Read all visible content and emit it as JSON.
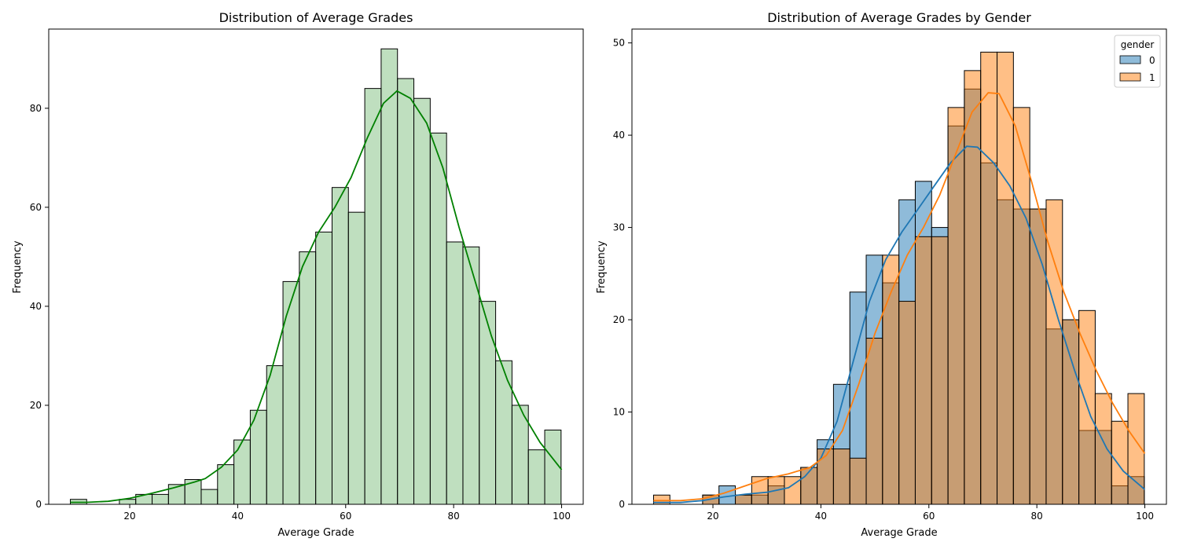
{
  "chart_data": [
    {
      "type": "bar",
      "title": "Distribution of Average Grades",
      "xlabel": "Average Grade",
      "ylabel": "Frequency",
      "xlim": [
        5,
        104
      ],
      "ylim": [
        0,
        96
      ],
      "xticks": [
        20,
        40,
        60,
        80,
        100
      ],
      "yticks": [
        0,
        20,
        40,
        60,
        80
      ],
      "bin_start": 9,
      "bin_width": 3.03,
      "grid": false,
      "series": [
        {
          "color": "#008000",
          "fill": "#7fbf7f",
          "values": [
            1,
            0,
            0,
            1,
            2,
            2,
            4,
            5,
            3,
            8,
            13,
            19,
            28,
            45,
            51,
            55,
            64,
            59,
            84,
            92,
            86,
            82,
            75,
            53,
            52,
            41,
            29,
            20,
            11,
            15
          ],
          "kde": [
            [
              9,
              0.4
            ],
            [
              12,
              0.4
            ],
            [
              16,
              0.6
            ],
            [
              20,
              1.2
            ],
            [
              24,
              2.2
            ],
            [
              28,
              3.3
            ],
            [
              32,
              4.5
            ],
            [
              34,
              5.2
            ],
            [
              37,
              7.5
            ],
            [
              40,
              11
            ],
            [
              43,
              17
            ],
            [
              46,
              26
            ],
            [
              49,
              38
            ],
            [
              52,
              48
            ],
            [
              55,
              55
            ],
            [
              58,
              60
            ],
            [
              61,
              66
            ],
            [
              64,
              74
            ],
            [
              67,
              81
            ],
            [
              69.5,
              83.5
            ],
            [
              72,
              82
            ],
            [
              75,
              77
            ],
            [
              78,
              68
            ],
            [
              81,
              56
            ],
            [
              84,
              45
            ],
            [
              87,
              34
            ],
            [
              90,
              25
            ],
            [
              93,
              18
            ],
            [
              96,
              12.5
            ],
            [
              100,
              7
            ]
          ]
        }
      ]
    },
    {
      "type": "bar",
      "title": "Distribution of Average Grades by Gender",
      "xlabel": "Average Grade",
      "ylabel": "Frequency",
      "xlim": [
        5,
        104
      ],
      "ylim": [
        0,
        51.5
      ],
      "xticks": [
        20,
        40,
        60,
        80,
        100
      ],
      "yticks": [
        0,
        10,
        20,
        30,
        40,
        50
      ],
      "bin_start": 9,
      "bin_width": 3.03,
      "grid": false,
      "legend": {
        "title": "gender",
        "placement": "top-right"
      },
      "series": [
        {
          "name": "0",
          "color": "#1f77b4",
          "fill": "#1f77b4",
          "values": [
            0,
            0,
            0,
            1,
            2,
            1,
            1,
            2,
            0,
            4,
            7,
            13,
            23,
            27,
            24,
            33,
            35,
            30,
            41,
            45,
            37,
            33,
            32,
            32,
            19,
            20,
            8,
            8,
            2,
            3
          ],
          "kde": [
            [
              9,
              0.2
            ],
            [
              14,
              0.2
            ],
            [
              18,
              0.4
            ],
            [
              22,
              0.8
            ],
            [
              26,
              1.1
            ],
            [
              30,
              1.3
            ],
            [
              34,
              1.8
            ],
            [
              37,
              3
            ],
            [
              40,
              5
            ],
            [
              43,
              9
            ],
            [
              46,
              15.5
            ],
            [
              49,
              22
            ],
            [
              52,
              26.5
            ],
            [
              55,
              29.5
            ],
            [
              58,
              32
            ],
            [
              61,
              34.5
            ],
            [
              64,
              37
            ],
            [
              67,
              38.8
            ],
            [
              69,
              38.7
            ],
            [
              72,
              37
            ],
            [
              75,
              34.5
            ],
            [
              78,
              31
            ],
            [
              81,
              26
            ],
            [
              84,
              20
            ],
            [
              87,
              14.5
            ],
            [
              90,
              9.5
            ],
            [
              93,
              6
            ],
            [
              96,
              3.6
            ],
            [
              100,
              1.6
            ]
          ]
        },
        {
          "name": "1",
          "color": "#ff7f0e",
          "fill": "#ff7f0e",
          "values": [
            1,
            0,
            0,
            1,
            0,
            1,
            3,
            3,
            3,
            4,
            6,
            6,
            5,
            18,
            27,
            22,
            29,
            29,
            43,
            47,
            49,
            49,
            43,
            32,
            33,
            20,
            21,
            12,
            9,
            12
          ],
          "kde": [
            [
              9,
              0.4
            ],
            [
              14,
              0.4
            ],
            [
              18,
              0.6
            ],
            [
              22,
              1.2
            ],
            [
              26,
              2
            ],
            [
              30,
              2.8
            ],
            [
              34,
              3.3
            ],
            [
              38,
              4
            ],
            [
              41,
              5.3
            ],
            [
              44,
              8
            ],
            [
              47,
              13
            ],
            [
              50,
              18.5
            ],
            [
              53,
              23
            ],
            [
              56,
              27
            ],
            [
              59,
              30
            ],
            [
              62,
              33.5
            ],
            [
              65,
              38
            ],
            [
              68,
              42.5
            ],
            [
              71,
              44.6
            ],
            [
              73,
              44.5
            ],
            [
              76,
              41
            ],
            [
              79,
              35
            ],
            [
              82,
              28.5
            ],
            [
              85,
              23
            ],
            [
              88,
              18.5
            ],
            [
              91,
              14.5
            ],
            [
              94,
              11
            ],
            [
              97,
              8
            ],
            [
              100,
              5.5
            ]
          ]
        }
      ]
    }
  ]
}
